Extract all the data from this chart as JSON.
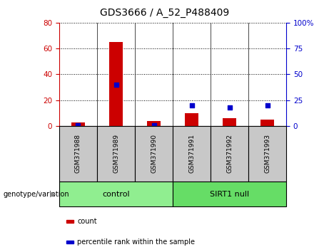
{
  "title": "GDS3666 / A_52_P488409",
  "samples": [
    "GSM371988",
    "GSM371989",
    "GSM371990",
    "GSM371991",
    "GSM371992",
    "GSM371993"
  ],
  "counts": [
    3,
    65,
    4,
    10,
    6,
    5
  ],
  "percentile_ranks": [
    1,
    40,
    1,
    20,
    18,
    20
  ],
  "left_ylim": [
    0,
    80
  ],
  "right_ylim": [
    0,
    100
  ],
  "left_yticks": [
    0,
    20,
    40,
    60,
    80
  ],
  "right_yticks": [
    0,
    25,
    50,
    75,
    100
  ],
  "right_yticklabels": [
    "0",
    "25",
    "50",
    "75",
    "100%"
  ],
  "bar_color": "#cc0000",
  "scatter_color": "#0000cc",
  "groups": [
    {
      "label": "control",
      "start": 0,
      "end": 3,
      "color": "#90ee90"
    },
    {
      "label": "SIRT1 null",
      "start": 3,
      "end": 6,
      "color": "#66dd66"
    }
  ],
  "genotype_label": "genotype/variation",
  "legend_items": [
    {
      "label": "count",
      "color": "#cc0000"
    },
    {
      "label": "percentile rank within the sample",
      "color": "#0000cc"
    }
  ],
  "tick_label_area_color": "#c8c8c8",
  "bar_width": 0.35,
  "scatter_size": 25,
  "left_ytick_color": "#cc0000",
  "right_ytick_color": "#0000cc"
}
